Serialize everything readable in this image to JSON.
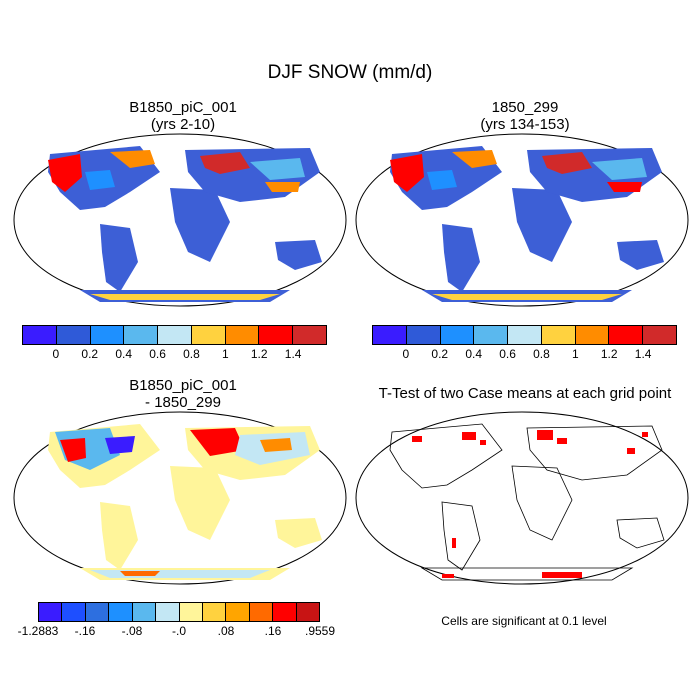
{
  "title": "DJF SNOW (mm/d)",
  "panels": [
    {
      "title_line1": "B1850_piC_001",
      "title_line2": "(yrs 2-10)"
    },
    {
      "title_line1": "1850_299",
      "title_line2": "(yrs 134-153)"
    },
    {
      "title_line1": "B1850_piC_001",
      "title_line2": "- 1850_299"
    },
    {
      "title_line1": "T-Test of two Case means at each grid point",
      "title_line2": ""
    }
  ],
  "colorbar_top": {
    "colors": [
      "#3a1cff",
      "#2f5ad8",
      "#1e90ff",
      "#5ab8ee",
      "#c3e7f4",
      "#ffd23f",
      "#ff8c00",
      "#ff0000",
      "#d12a2a"
    ],
    "labels": [
      "0",
      "0.2",
      "0.4",
      "0.6",
      "0.8",
      "1",
      "1.2",
      "1.4"
    ]
  },
  "colorbar_diff": {
    "colors": [
      "#3a1cff",
      "#1e4fff",
      "#2d6fe0",
      "#1e90ff",
      "#5ab8ee",
      "#c3e7f4",
      "#fff59a",
      "#ffd23f",
      "#ffa500",
      "#ff6a00",
      "#ff0000",
      "#c81414"
    ],
    "labels": [
      "-1.2883",
      "-.16",
      "-.08",
      "-.0",
      ".08",
      ".16",
      ".9559"
    ]
  },
  "significance_note": "Cells are significant at 0.1 level",
  "colors": {
    "ocean": "#ffffff",
    "land_low": "#3d5fd6",
    "land_diff_zero": "#fff59a",
    "significant": "#ff0000"
  }
}
